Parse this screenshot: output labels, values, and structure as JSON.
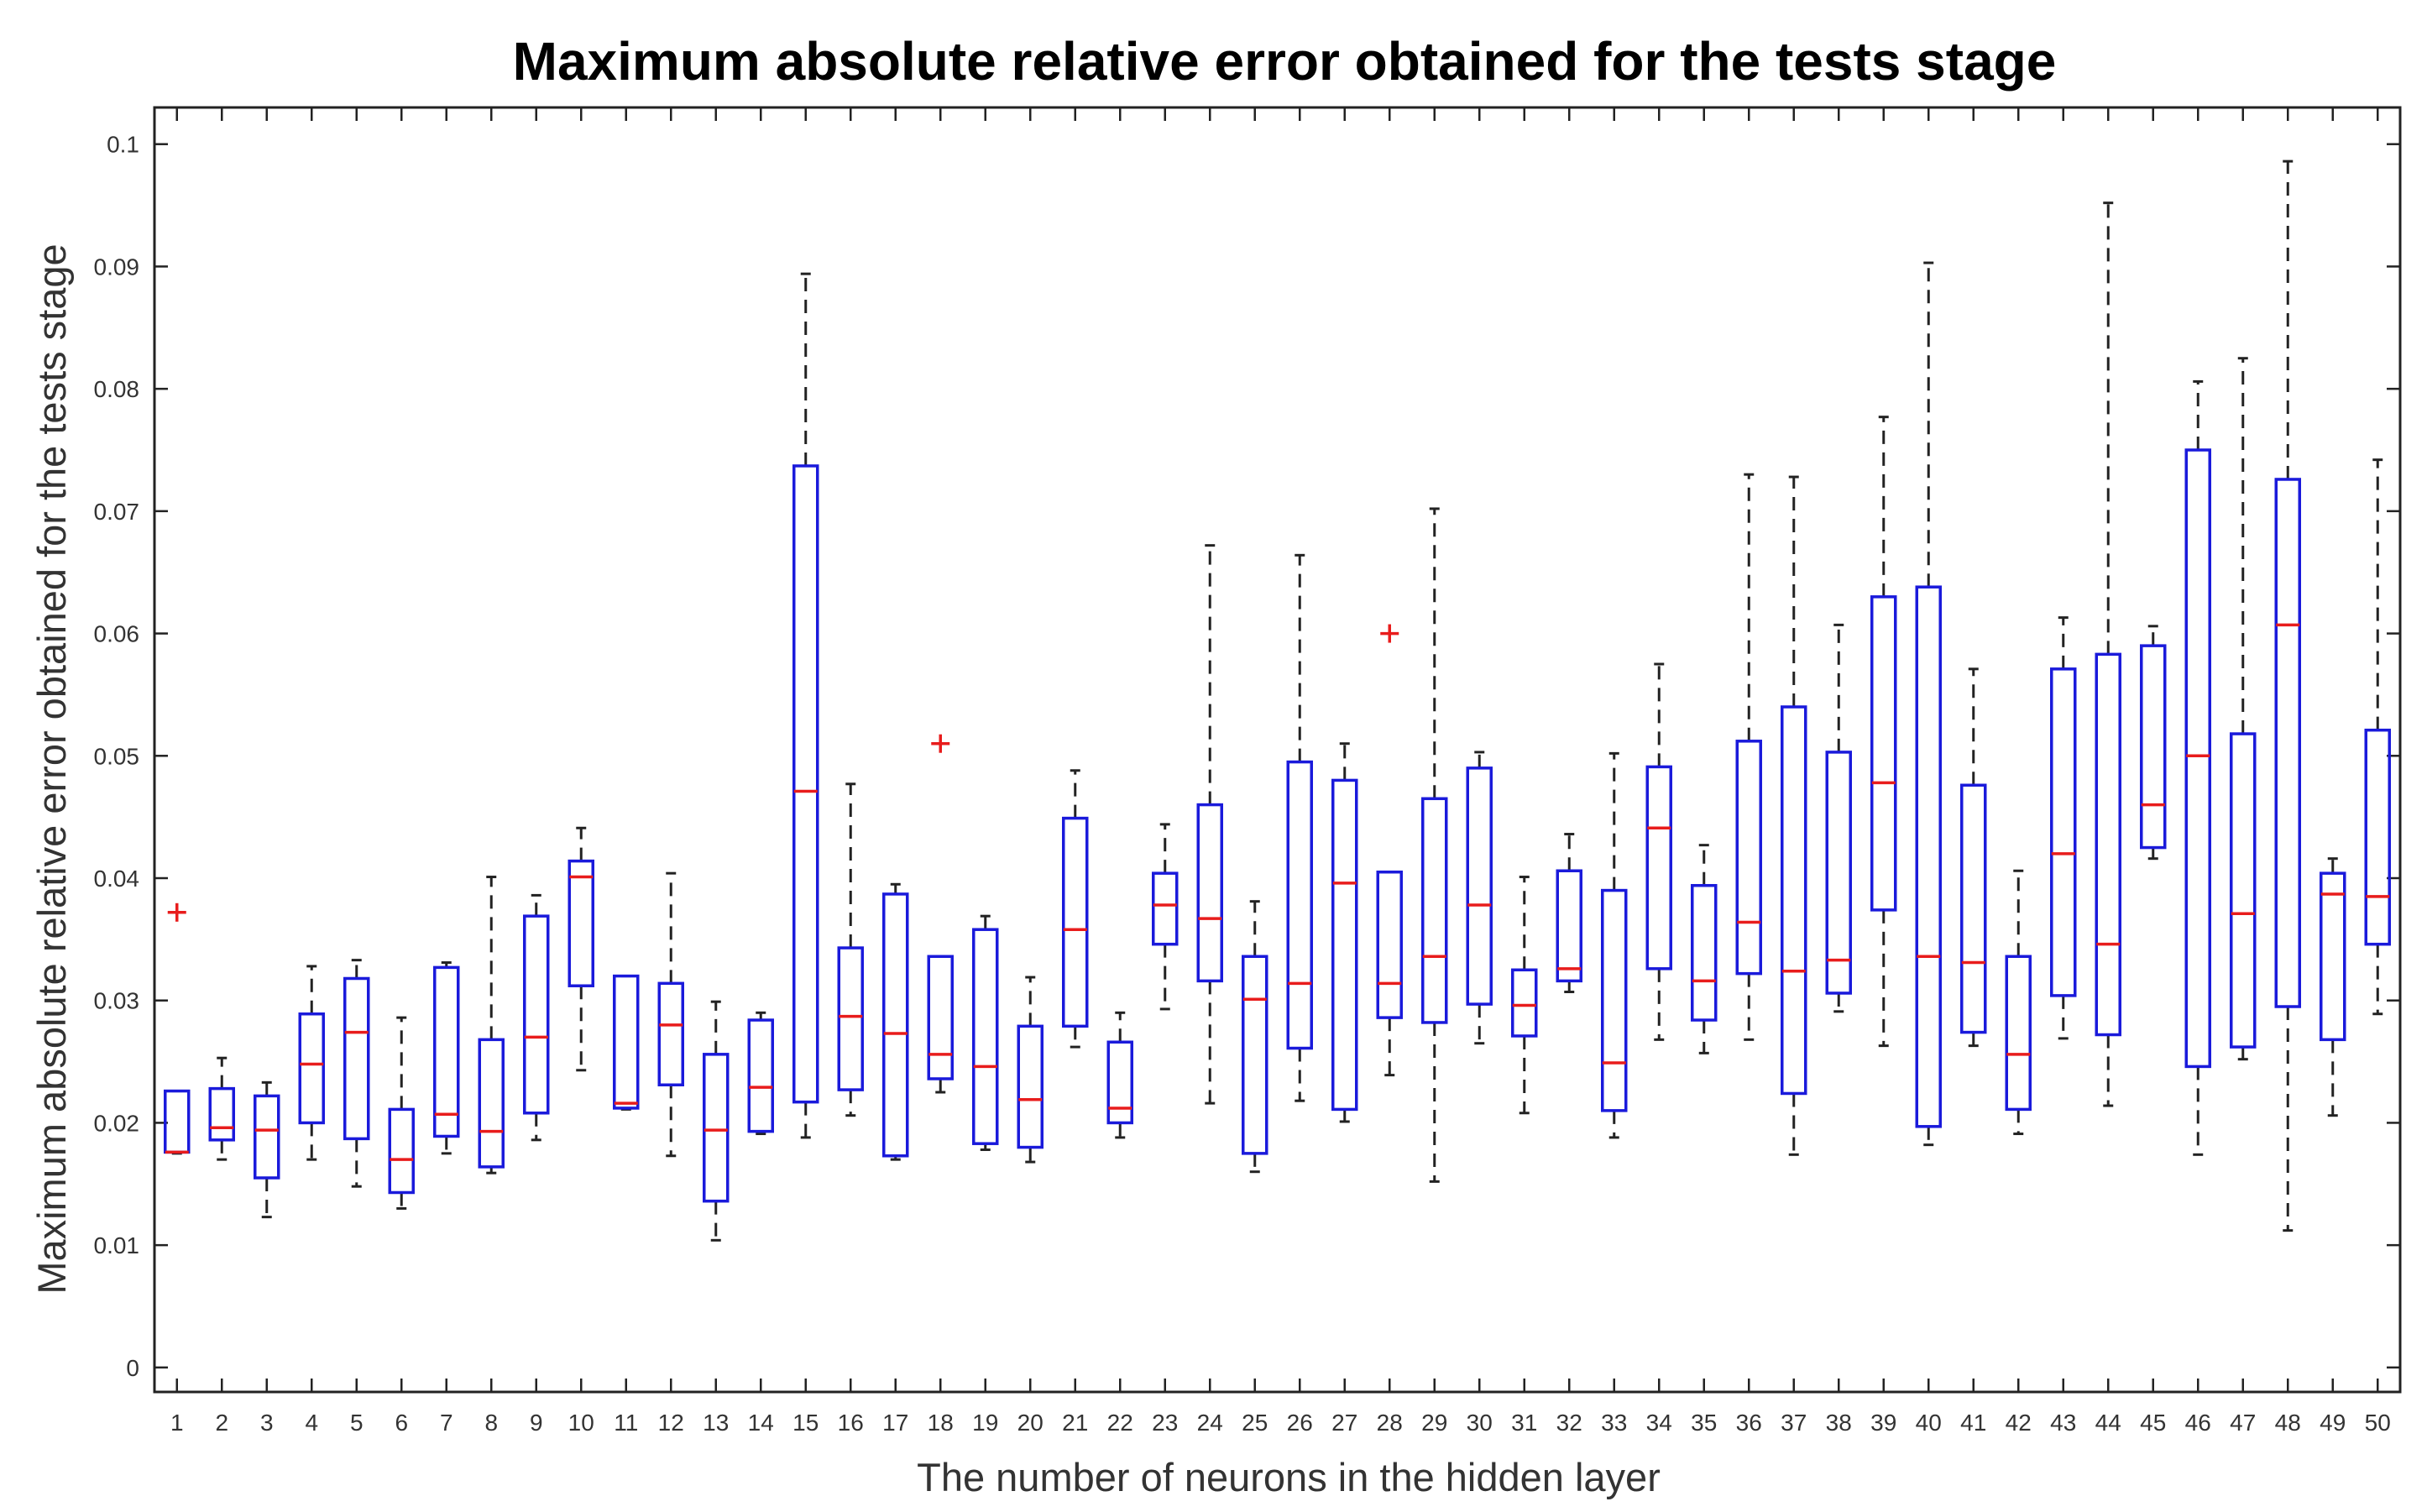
{
  "chart_data": {
    "type": "boxplot",
    "title": "Maximum absolute relative error obtained for the tests stage",
    "xlabel": "The number of neurons in the hidden layer",
    "ylabel": "Maximum absolute relative error obtained for the tests stage",
    "xlim": [
      0.5,
      50.5
    ],
    "ylim": [
      -0.002,
      0.103
    ],
    "yticks": [
      0,
      0.01,
      0.02,
      0.03,
      0.04,
      0.05,
      0.06,
      0.07,
      0.08,
      0.09,
      0.1
    ],
    "ytick_labels": [
      "0",
      "0.01",
      "0.02",
      "0.03",
      "0.04",
      "0.05",
      "0.06",
      "0.07",
      "0.08",
      "0.09",
      "0.1"
    ],
    "grid": false,
    "colors": {
      "box": "#1a1adb",
      "median": "#e81c1c",
      "whisker": "#222222",
      "outlier": "#e81c1c"
    },
    "categories": [
      "1",
      "2",
      "3",
      "4",
      "5",
      "6",
      "7",
      "8",
      "9",
      "10",
      "11",
      "12",
      "13",
      "14",
      "15",
      "16",
      "17",
      "18",
      "19",
      "20",
      "21",
      "22",
      "23",
      "24",
      "25",
      "26",
      "27",
      "28",
      "29",
      "30",
      "31",
      "32",
      "33",
      "34",
      "35",
      "36",
      "37",
      "38",
      "39",
      "40",
      "41",
      "42",
      "43",
      "44",
      "45",
      "46",
      "47",
      "48",
      "49",
      "50"
    ],
    "boxes": [
      {
        "x": 1,
        "lower_whisker": 0.0175,
        "q1": 0.0176,
        "median": 0.0176,
        "q3": 0.0226,
        "upper_whisker": 0.0226,
        "outliers": [
          0.0372
        ]
      },
      {
        "x": 2,
        "lower_whisker": 0.017,
        "q1": 0.0186,
        "median": 0.0196,
        "q3": 0.0228,
        "upper_whisker": 0.0253,
        "outliers": []
      },
      {
        "x": 3,
        "lower_whisker": 0.0123,
        "q1": 0.0155,
        "median": 0.0194,
        "q3": 0.0222,
        "upper_whisker": 0.0233,
        "outliers": []
      },
      {
        "x": 4,
        "lower_whisker": 0.017,
        "q1": 0.02,
        "median": 0.0248,
        "q3": 0.0289,
        "upper_whisker": 0.0328,
        "outliers": []
      },
      {
        "x": 5,
        "lower_whisker": 0.0148,
        "q1": 0.0187,
        "median": 0.0274,
        "q3": 0.0318,
        "upper_whisker": 0.0333,
        "outliers": []
      },
      {
        "x": 6,
        "lower_whisker": 0.013,
        "q1": 0.0143,
        "median": 0.017,
        "q3": 0.0211,
        "upper_whisker": 0.0286,
        "outliers": []
      },
      {
        "x": 7,
        "lower_whisker": 0.0175,
        "q1": 0.0189,
        "median": 0.0207,
        "q3": 0.0327,
        "upper_whisker": 0.0331,
        "outliers": []
      },
      {
        "x": 8,
        "lower_whisker": 0.0159,
        "q1": 0.0164,
        "median": 0.0193,
        "q3": 0.0268,
        "upper_whisker": 0.0401,
        "outliers": []
      },
      {
        "x": 9,
        "lower_whisker": 0.0186,
        "q1": 0.0208,
        "median": 0.027,
        "q3": 0.0369,
        "upper_whisker": 0.0386,
        "outliers": []
      },
      {
        "x": 10,
        "lower_whisker": 0.0243,
        "q1": 0.0312,
        "median": 0.0401,
        "q3": 0.0414,
        "upper_whisker": 0.0441,
        "outliers": []
      },
      {
        "x": 11,
        "lower_whisker": 0.0211,
        "q1": 0.0212,
        "median": 0.0216,
        "q3": 0.032,
        "upper_whisker": 0.032,
        "outliers": []
      },
      {
        "x": 12,
        "lower_whisker": 0.0173,
        "q1": 0.0231,
        "median": 0.028,
        "q3": 0.0314,
        "upper_whisker": 0.0404,
        "outliers": []
      },
      {
        "x": 13,
        "lower_whisker": 0.0104,
        "q1": 0.0136,
        "median": 0.0194,
        "q3": 0.0256,
        "upper_whisker": 0.0299,
        "outliers": []
      },
      {
        "x": 14,
        "lower_whisker": 0.0191,
        "q1": 0.0193,
        "median": 0.0229,
        "q3": 0.0284,
        "upper_whisker": 0.029,
        "outliers": []
      },
      {
        "x": 15,
        "lower_whisker": 0.0188,
        "q1": 0.0217,
        "median": 0.0471,
        "q3": 0.0737,
        "upper_whisker": 0.0894,
        "outliers": []
      },
      {
        "x": 16,
        "lower_whisker": 0.0206,
        "q1": 0.0227,
        "median": 0.0287,
        "q3": 0.0343,
        "upper_whisker": 0.0477,
        "outliers": []
      },
      {
        "x": 17,
        "lower_whisker": 0.017,
        "q1": 0.0173,
        "median": 0.0273,
        "q3": 0.0387,
        "upper_whisker": 0.0395,
        "outliers": []
      },
      {
        "x": 18,
        "lower_whisker": 0.0225,
        "q1": 0.0236,
        "median": 0.0256,
        "q3": 0.0336,
        "upper_whisker": 0.0336,
        "outliers": [
          0.051
        ]
      },
      {
        "x": 19,
        "lower_whisker": 0.0178,
        "q1": 0.0183,
        "median": 0.0246,
        "q3": 0.0358,
        "upper_whisker": 0.0369,
        "outliers": []
      },
      {
        "x": 20,
        "lower_whisker": 0.0168,
        "q1": 0.018,
        "median": 0.0219,
        "q3": 0.0279,
        "upper_whisker": 0.0319,
        "outliers": []
      },
      {
        "x": 21,
        "lower_whisker": 0.0262,
        "q1": 0.0279,
        "median": 0.0358,
        "q3": 0.0449,
        "upper_whisker": 0.0488,
        "outliers": []
      },
      {
        "x": 22,
        "lower_whisker": 0.0188,
        "q1": 0.02,
        "median": 0.0212,
        "q3": 0.0266,
        "upper_whisker": 0.029,
        "outliers": []
      },
      {
        "x": 23,
        "lower_whisker": 0.0293,
        "q1": 0.0346,
        "median": 0.0378,
        "q3": 0.0404,
        "upper_whisker": 0.0444,
        "outliers": []
      },
      {
        "x": 24,
        "lower_whisker": 0.0216,
        "q1": 0.0316,
        "median": 0.0367,
        "q3": 0.046,
        "upper_whisker": 0.0672,
        "outliers": []
      },
      {
        "x": 25,
        "lower_whisker": 0.016,
        "q1": 0.0175,
        "median": 0.0301,
        "q3": 0.0336,
        "upper_whisker": 0.0381,
        "outliers": []
      },
      {
        "x": 26,
        "lower_whisker": 0.0218,
        "q1": 0.0261,
        "median": 0.0314,
        "q3": 0.0495,
        "upper_whisker": 0.0664,
        "outliers": []
      },
      {
        "x": 27,
        "lower_whisker": 0.0201,
        "q1": 0.0211,
        "median": 0.0396,
        "q3": 0.048,
        "upper_whisker": 0.051,
        "outliers": []
      },
      {
        "x": 28,
        "lower_whisker": 0.0239,
        "q1": 0.0286,
        "median": 0.0314,
        "q3": 0.0405,
        "upper_whisker": 0.0405,
        "outliers": [
          0.06
        ]
      },
      {
        "x": 29,
        "lower_whisker": 0.0152,
        "q1": 0.0282,
        "median": 0.0336,
        "q3": 0.0465,
        "upper_whisker": 0.0702,
        "outliers": []
      },
      {
        "x": 30,
        "lower_whisker": 0.0265,
        "q1": 0.0297,
        "median": 0.0378,
        "q3": 0.049,
        "upper_whisker": 0.0503,
        "outliers": []
      },
      {
        "x": 31,
        "lower_whisker": 0.0208,
        "q1": 0.0271,
        "median": 0.0296,
        "q3": 0.0325,
        "upper_whisker": 0.0401,
        "outliers": []
      },
      {
        "x": 32,
        "lower_whisker": 0.0307,
        "q1": 0.0316,
        "median": 0.0326,
        "q3": 0.0406,
        "upper_whisker": 0.0436,
        "outliers": []
      },
      {
        "x": 33,
        "lower_whisker": 0.0188,
        "q1": 0.021,
        "median": 0.0249,
        "q3": 0.039,
        "upper_whisker": 0.0502,
        "outliers": []
      },
      {
        "x": 34,
        "lower_whisker": 0.0268,
        "q1": 0.0326,
        "median": 0.0441,
        "q3": 0.0491,
        "upper_whisker": 0.0575,
        "outliers": []
      },
      {
        "x": 35,
        "lower_whisker": 0.0257,
        "q1": 0.0284,
        "median": 0.0316,
        "q3": 0.0394,
        "upper_whisker": 0.0427,
        "outliers": []
      },
      {
        "x": 36,
        "lower_whisker": 0.0268,
        "q1": 0.0322,
        "median": 0.0364,
        "q3": 0.0512,
        "upper_whisker": 0.073,
        "outliers": []
      },
      {
        "x": 37,
        "lower_whisker": 0.0174,
        "q1": 0.0224,
        "median": 0.0324,
        "q3": 0.054,
        "upper_whisker": 0.0728,
        "outliers": []
      },
      {
        "x": 38,
        "lower_whisker": 0.0291,
        "q1": 0.0306,
        "median": 0.0333,
        "q3": 0.0503,
        "upper_whisker": 0.0607,
        "outliers": []
      },
      {
        "x": 39,
        "lower_whisker": 0.0263,
        "q1": 0.0374,
        "median": 0.0478,
        "q3": 0.063,
        "upper_whisker": 0.0777,
        "outliers": []
      },
      {
        "x": 40,
        "lower_whisker": 0.0182,
        "q1": 0.0197,
        "median": 0.0336,
        "q3": 0.0638,
        "upper_whisker": 0.0903,
        "outliers": []
      },
      {
        "x": 41,
        "lower_whisker": 0.0263,
        "q1": 0.0274,
        "median": 0.0331,
        "q3": 0.0476,
        "upper_whisker": 0.0571,
        "outliers": []
      },
      {
        "x": 42,
        "lower_whisker": 0.0191,
        "q1": 0.0211,
        "median": 0.0256,
        "q3": 0.0336,
        "upper_whisker": 0.0406,
        "outliers": []
      },
      {
        "x": 43,
        "lower_whisker": 0.0269,
        "q1": 0.0304,
        "median": 0.042,
        "q3": 0.0571,
        "upper_whisker": 0.0613,
        "outliers": []
      },
      {
        "x": 44,
        "lower_whisker": 0.0214,
        "q1": 0.0272,
        "median": 0.0346,
        "q3": 0.0583,
        "upper_whisker": 0.0952,
        "outliers": []
      },
      {
        "x": 45,
        "lower_whisker": 0.0416,
        "q1": 0.0425,
        "median": 0.046,
        "q3": 0.059,
        "upper_whisker": 0.0606,
        "outliers": []
      },
      {
        "x": 46,
        "lower_whisker": 0.0174,
        "q1": 0.0246,
        "median": 0.05,
        "q3": 0.075,
        "upper_whisker": 0.0806,
        "outliers": []
      },
      {
        "x": 47,
        "lower_whisker": 0.0252,
        "q1": 0.0262,
        "median": 0.0371,
        "q3": 0.0518,
        "upper_whisker": 0.0825,
        "outliers": []
      },
      {
        "x": 48,
        "lower_whisker": 0.0112,
        "q1": 0.0295,
        "median": 0.0607,
        "q3": 0.0726,
        "upper_whisker": 0.0986,
        "outliers": []
      },
      {
        "x": 49,
        "lower_whisker": 0.0206,
        "q1": 0.0268,
        "median": 0.0387,
        "q3": 0.0404,
        "upper_whisker": 0.0416,
        "outliers": []
      },
      {
        "x": 50,
        "lower_whisker": 0.0289,
        "q1": 0.0346,
        "median": 0.0385,
        "q3": 0.0521,
        "upper_whisker": 0.0742,
        "outliers": []
      }
    ]
  }
}
